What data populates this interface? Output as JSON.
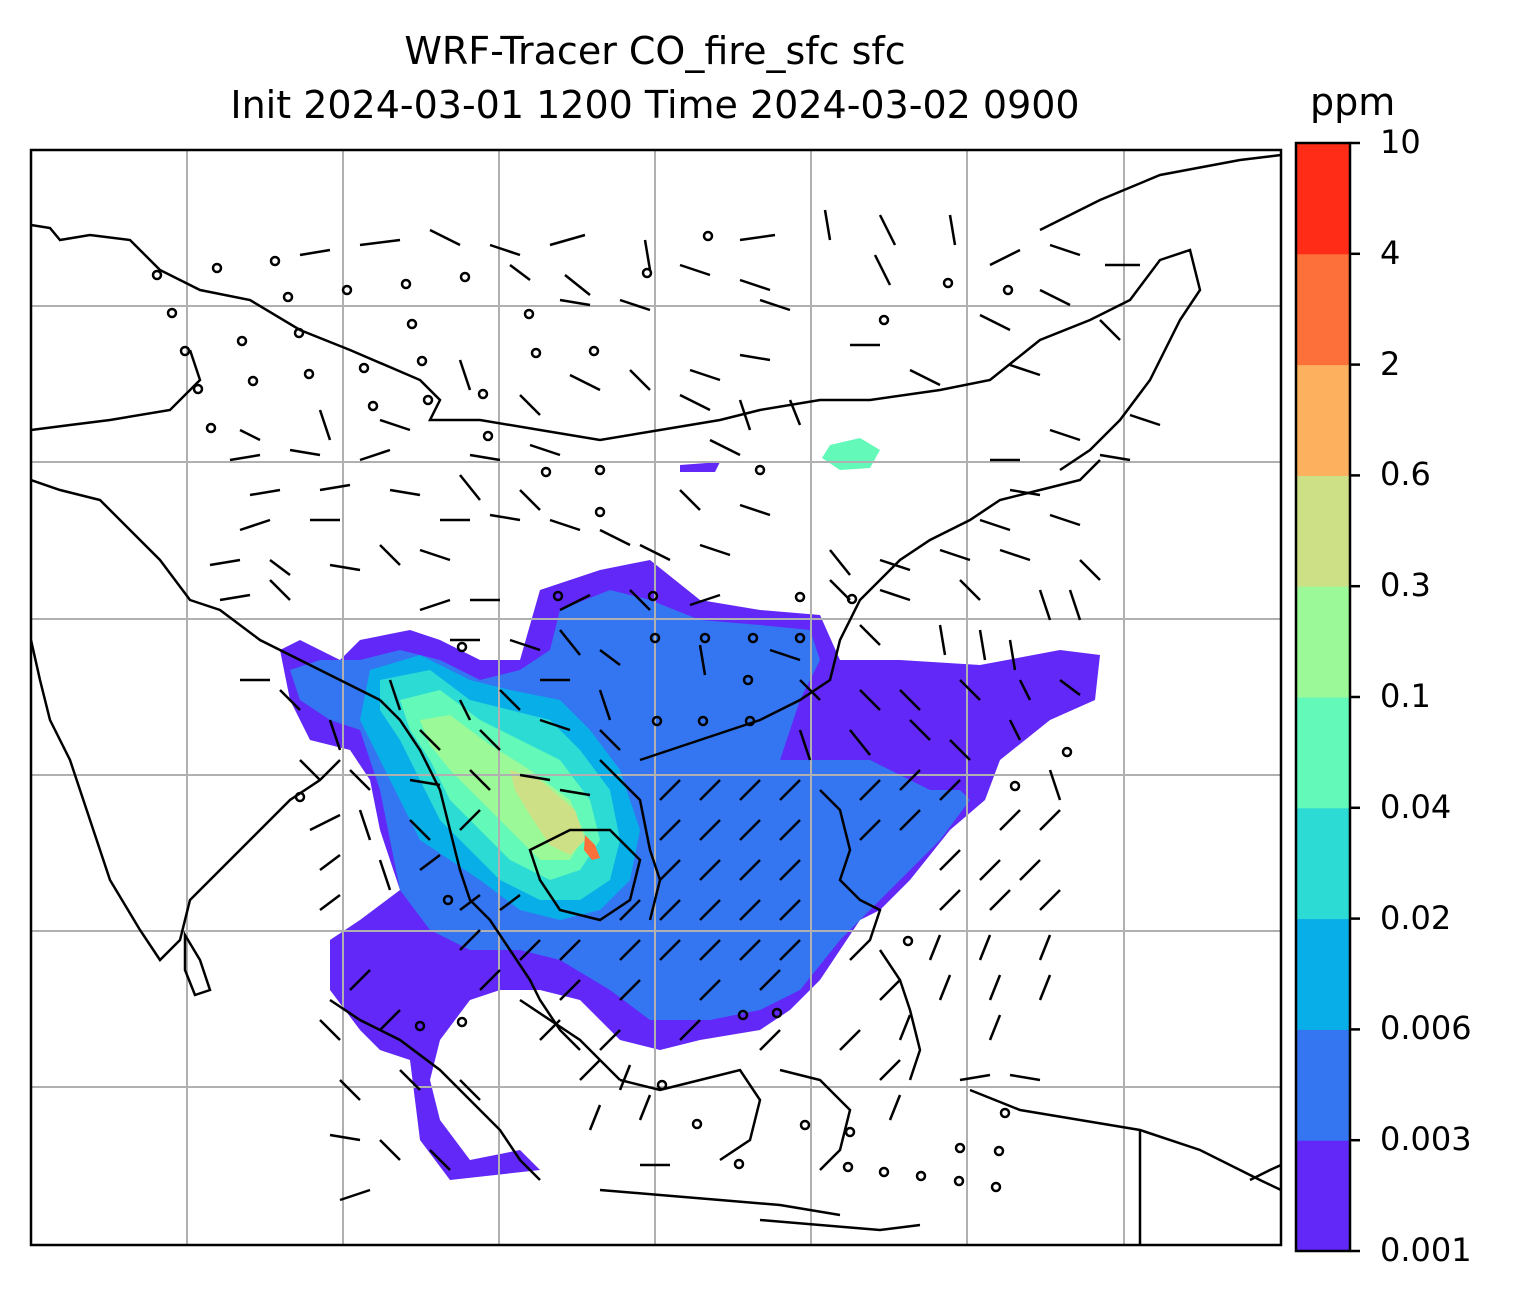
{
  "title": {
    "line1": "WRF-Tracer CO_fire_sfc sfc",
    "line2": "Init 2024-03-01 1200 Time 2024-03-02 0900"
  },
  "colorbar": {
    "unit": "ppm",
    "levels": [
      "0.001",
      "0.003",
      "0.006",
      "0.02",
      "0.04",
      "0.1",
      "0.3",
      "0.6",
      "2",
      "4",
      "10"
    ],
    "colors": [
      "#6128f7",
      "#3476f2",
      "#08aee8",
      "#2cdbd4",
      "#63f9b9",
      "#9bf998",
      "#cee085",
      "#fdb05e",
      "#fe7039",
      "#ff2d17"
    ]
  },
  "map": {
    "projection": "map of South and Southeast Asia with tracer plume and wind barbs",
    "gridlines": true
  }
}
